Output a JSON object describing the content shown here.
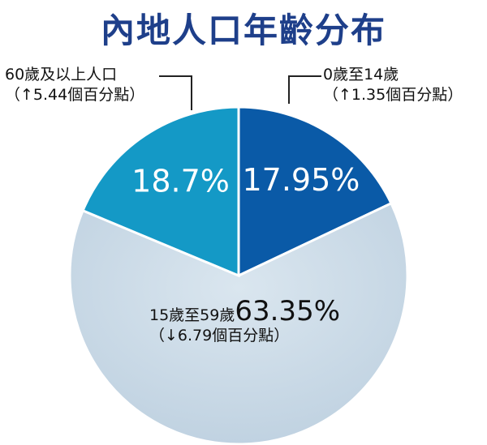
{
  "title": "內地人口年齡分布",
  "chart_data": {
    "type": "pie",
    "title": "內地人口年齡分布",
    "slices": [
      {
        "label": "0歲至14歲",
        "value": 17.95,
        "value_label": "17.95%",
        "change": "（↑1.35個百分點）",
        "color": "#0a5aa7"
      },
      {
        "label": "15歲至59歲",
        "value": 63.35,
        "value_label": "63.35%",
        "change": "（↓6.79個百分點）",
        "color": "#cfdde9"
      },
      {
        "label": "60歲及以上人口",
        "value": 18.7,
        "value_label": "18.7%",
        "change": "（↑5.44個百分點）",
        "color": "#1499c6"
      }
    ]
  }
}
